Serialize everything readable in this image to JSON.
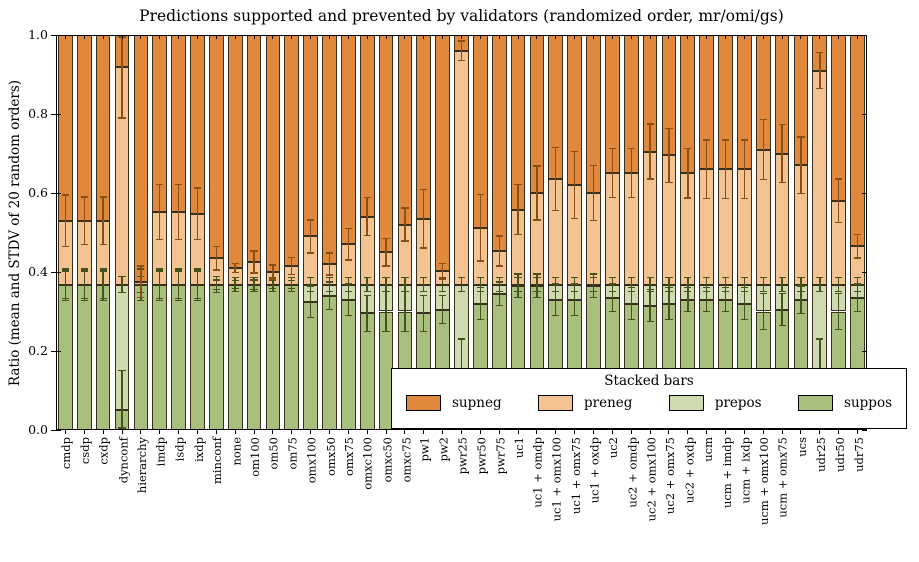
{
  "chart_data": {
    "type": "bar",
    "stacked": true,
    "title": "Predictions supported and prevented by validators (randomized order, mr/omi/gs)",
    "ylabel": "Ratio (mean and STDV of 20 random orders)",
    "xlabel": "",
    "ylim": [
      0.0,
      1.0
    ],
    "yticks": [
      "0.0",
      "0.2",
      "0.4",
      "0.6",
      "0.8",
      "1.0"
    ],
    "grid": false,
    "xtick_rotation": 90,
    "bar_total": 1.0,
    "series_order_bottom_to_top": [
      "suppos",
      "prepos",
      "preneg",
      "supneg"
    ],
    "legend": {
      "title": "Stacked bars",
      "position": "lower right",
      "entries": [
        "supneg",
        "preneg",
        "prepos",
        "suppos"
      ]
    },
    "colors": {
      "supneg": "#e0883c",
      "preneg": "#f4c392",
      "prepos": "#cfdab1",
      "suppos": "#a8bf7e",
      "bar_edge": "#39301c",
      "err_upper_boundary": "#8a4f15",
      "err_lower_boundary": "#46531d",
      "axis": "#000000",
      "background": "#ffffff"
    },
    "categories": [
      "cmdp",
      "csdp",
      "cxdp",
      "dynconf",
      "hierarchy",
      "imdp",
      "isdp",
      "ixdp",
      "minconf",
      "none",
      "om100",
      "om50",
      "om75",
      "omx100",
      "omx50",
      "omx75",
      "omxc100",
      "omxc50",
      "omxc75",
      "pw1",
      "pw2",
      "pwr25",
      "pwr50",
      "pwr75",
      "uc1",
      "uc1 + omdp",
      "uc1 + omx100",
      "uc1 + omx75",
      "uc1 + oxdp",
      "uc2",
      "uc2 + omdp",
      "uc2 + omx100",
      "uc2 + omx75",
      "uc2 + oxdp",
      "ucm",
      "ucm + imdp",
      "ucm + ixdp",
      "ucm + omx100",
      "ucm + omx75",
      "ucs",
      "udr25",
      "udr50",
      "udr75"
    ],
    "bars": [
      {
        "b_suppos": 0.368,
        "b_prepos": 0.368,
        "b_preneg": 0.53,
        "e_suppos": 0.04,
        "e_prepos": 0.035,
        "e_preneg": 0.065
      },
      {
        "b_suppos": 0.368,
        "b_prepos": 0.368,
        "b_preneg": 0.53,
        "e_suppos": 0.04,
        "e_prepos": 0.035,
        "e_preneg": 0.06
      },
      {
        "b_suppos": 0.368,
        "b_prepos": 0.368,
        "b_preneg": 0.53,
        "e_suppos": 0.04,
        "e_prepos": 0.035,
        "e_preneg": 0.06
      },
      {
        "b_suppos": 0.05,
        "b_prepos": 0.368,
        "b_preneg": 0.92,
        "e_suppos": 0.1,
        "e_prepos": 0.02,
        "e_preneg": 0.13
      },
      {
        "b_suppos": 0.368,
        "b_prepos": 0.368,
        "b_preneg": 0.375,
        "e_suppos": 0.04,
        "e_prepos": 0.02,
        "e_preneg": 0.04
      },
      {
        "b_suppos": 0.368,
        "b_prepos": 0.368,
        "b_preneg": 0.552,
        "e_suppos": 0.04,
        "e_prepos": 0.035,
        "e_preneg": 0.07
      },
      {
        "b_suppos": 0.368,
        "b_prepos": 0.368,
        "b_preneg": 0.552,
        "e_suppos": 0.04,
        "e_prepos": 0.035,
        "e_preneg": 0.07
      },
      {
        "b_suppos": 0.368,
        "b_prepos": 0.368,
        "b_preneg": 0.548,
        "e_suppos": 0.04,
        "e_prepos": 0.035,
        "e_preneg": 0.065
      },
      {
        "b_suppos": 0.368,
        "b_prepos": 0.368,
        "b_preneg": 0.435,
        "e_suppos": 0.02,
        "e_prepos": 0.012,
        "e_preneg": 0.03
      },
      {
        "b_suppos": 0.368,
        "b_prepos": 0.368,
        "b_preneg": 0.41,
        "e_suppos": 0.018,
        "e_prepos": 0.01,
        "e_preneg": 0.012
      },
      {
        "b_suppos": 0.368,
        "b_prepos": 0.368,
        "b_preneg": 0.425,
        "e_suppos": 0.018,
        "e_prepos": 0.012,
        "e_preneg": 0.028
      },
      {
        "b_suppos": 0.368,
        "b_prepos": 0.368,
        "b_preneg": 0.4,
        "e_suppos": 0.018,
        "e_prepos": 0.01,
        "e_preneg": 0.018
      },
      {
        "b_suppos": 0.368,
        "b_prepos": 0.368,
        "b_preneg": 0.415,
        "e_suppos": 0.018,
        "e_prepos": 0.01,
        "e_preneg": 0.022
      },
      {
        "b_suppos": 0.325,
        "b_prepos": 0.368,
        "b_preneg": 0.49,
        "e_suppos": 0.04,
        "e_prepos": 0.018,
        "e_preneg": 0.042
      },
      {
        "b_suppos": 0.34,
        "b_prepos": 0.368,
        "b_preneg": 0.42,
        "e_suppos": 0.035,
        "e_prepos": 0.018,
        "e_preneg": 0.028
      },
      {
        "b_suppos": 0.33,
        "b_prepos": 0.368,
        "b_preneg": 0.47,
        "e_suppos": 0.04,
        "e_prepos": 0.018,
        "e_preneg": 0.04
      },
      {
        "b_suppos": 0.295,
        "b_prepos": 0.368,
        "b_preneg": 0.54,
        "e_suppos": 0.045,
        "e_prepos": 0.018,
        "e_preneg": 0.048
      },
      {
        "b_suppos": 0.3,
        "b_prepos": 0.368,
        "b_preneg": 0.45,
        "e_suppos": 0.05,
        "e_prepos": 0.018,
        "e_preneg": 0.035
      },
      {
        "b_suppos": 0.3,
        "b_prepos": 0.368,
        "b_preneg": 0.52,
        "e_suppos": 0.05,
        "e_prepos": 0.018,
        "e_preneg": 0.042
      },
      {
        "b_suppos": 0.295,
        "b_prepos": 0.368,
        "b_preneg": 0.535,
        "e_suppos": 0.045,
        "e_prepos": 0.018,
        "e_preneg": 0.074
      },
      {
        "b_suppos": 0.305,
        "b_prepos": 0.368,
        "b_preneg": 0.402,
        "e_suppos": 0.035,
        "e_prepos": 0.018,
        "e_preneg": 0.02
      },
      {
        "b_suppos": 0.15,
        "b_prepos": 0.368,
        "b_preneg": 0.96,
        "e_suppos": 0.08,
        "e_prepos": 0.018,
        "e_preneg": 0.025
      },
      {
        "b_suppos": 0.32,
        "b_prepos": 0.368,
        "b_preneg": 0.512,
        "e_suppos": 0.04,
        "e_prepos": 0.018,
        "e_preneg": 0.084
      },
      {
        "b_suppos": 0.345,
        "b_prepos": 0.368,
        "b_preneg": 0.453,
        "e_suppos": 0.03,
        "e_prepos": 0.018,
        "e_preneg": 0.038
      },
      {
        "b_suppos": 0.365,
        "b_prepos": 0.368,
        "b_preneg": 0.558,
        "e_suppos": 0.03,
        "e_prepos": 0.018,
        "e_preneg": 0.063
      },
      {
        "b_suppos": 0.365,
        "b_prepos": 0.368,
        "b_preneg": 0.6,
        "e_suppos": 0.03,
        "e_prepos": 0.018,
        "e_preneg": 0.068
      },
      {
        "b_suppos": 0.33,
        "b_prepos": 0.368,
        "b_preneg": 0.635,
        "e_suppos": 0.04,
        "e_prepos": 0.018,
        "e_preneg": 0.08
      },
      {
        "b_suppos": 0.33,
        "b_prepos": 0.368,
        "b_preneg": 0.62,
        "e_suppos": 0.04,
        "e_prepos": 0.018,
        "e_preneg": 0.085
      },
      {
        "b_suppos": 0.365,
        "b_prepos": 0.368,
        "b_preneg": 0.6,
        "e_suppos": 0.03,
        "e_prepos": 0.018,
        "e_preneg": 0.07
      },
      {
        "b_suppos": 0.335,
        "b_prepos": 0.368,
        "b_preneg": 0.65,
        "e_suppos": 0.035,
        "e_prepos": 0.018,
        "e_preneg": 0.062
      },
      {
        "b_suppos": 0.32,
        "b_prepos": 0.368,
        "b_preneg": 0.65,
        "e_suppos": 0.04,
        "e_prepos": 0.018,
        "e_preneg": 0.062
      },
      {
        "b_suppos": 0.315,
        "b_prepos": 0.368,
        "b_preneg": 0.705,
        "e_suppos": 0.04,
        "e_prepos": 0.018,
        "e_preneg": 0.07
      },
      {
        "b_suppos": 0.32,
        "b_prepos": 0.368,
        "b_preneg": 0.695,
        "e_suppos": 0.04,
        "e_prepos": 0.018,
        "e_preneg": 0.068
      },
      {
        "b_suppos": 0.33,
        "b_prepos": 0.368,
        "b_preneg": 0.65,
        "e_suppos": 0.03,
        "e_prepos": 0.018,
        "e_preneg": 0.063
      },
      {
        "b_suppos": 0.33,
        "b_prepos": 0.368,
        "b_preneg": 0.66,
        "e_suppos": 0.03,
        "e_prepos": 0.018,
        "e_preneg": 0.074
      },
      {
        "b_suppos": 0.33,
        "b_prepos": 0.368,
        "b_preneg": 0.66,
        "e_suppos": 0.03,
        "e_prepos": 0.018,
        "e_preneg": 0.074
      },
      {
        "b_suppos": 0.32,
        "b_prepos": 0.368,
        "b_preneg": 0.66,
        "e_suppos": 0.04,
        "e_prepos": 0.018,
        "e_preneg": 0.074
      },
      {
        "b_suppos": 0.3,
        "b_prepos": 0.368,
        "b_preneg": 0.71,
        "e_suppos": 0.045,
        "e_prepos": 0.018,
        "e_preneg": 0.076
      },
      {
        "b_suppos": 0.305,
        "b_prepos": 0.368,
        "b_preneg": 0.7,
        "e_suppos": 0.04,
        "e_prepos": 0.018,
        "e_preneg": 0.074
      },
      {
        "b_suppos": 0.33,
        "b_prepos": 0.368,
        "b_preneg": 0.67,
        "e_suppos": 0.035,
        "e_prepos": 0.018,
        "e_preneg": 0.072
      },
      {
        "b_suppos": 0.15,
        "b_prepos": 0.368,
        "b_preneg": 0.91,
        "e_suppos": 0.08,
        "e_prepos": 0.018,
        "e_preneg": 0.046
      },
      {
        "b_suppos": 0.3,
        "b_prepos": 0.368,
        "b_preneg": 0.58,
        "e_suppos": 0.045,
        "e_prepos": 0.018,
        "e_preneg": 0.055
      },
      {
        "b_suppos": 0.335,
        "b_prepos": 0.368,
        "b_preneg": 0.465,
        "e_suppos": 0.035,
        "e_prepos": 0.018,
        "e_preneg": 0.03
      }
    ]
  }
}
